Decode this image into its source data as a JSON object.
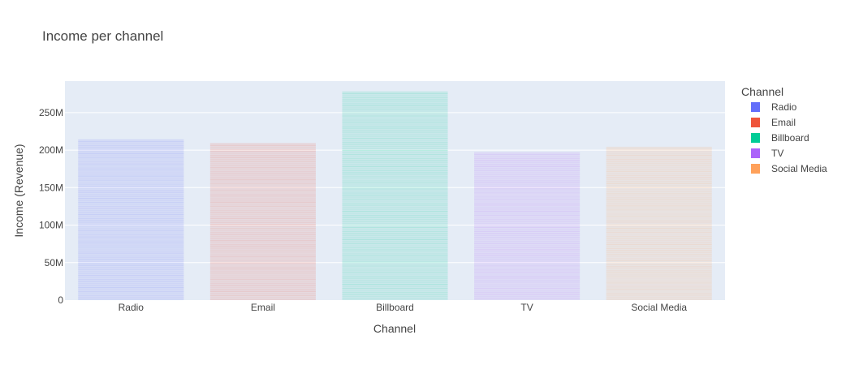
{
  "chart_data": {
    "type": "bar",
    "title": "Income per channel",
    "xlabel": "Channel",
    "ylabel": "Income (Revenue)",
    "categories": [
      "Radio",
      "Email",
      "Billboard",
      "TV",
      "Social Media"
    ],
    "values": [
      214000000,
      209000000,
      278000000,
      197000000,
      204000000
    ],
    "ylim": [
      0,
      292000000
    ],
    "yticks": [
      0,
      50000000,
      100000000,
      150000000,
      200000000,
      250000000
    ],
    "ytick_labels": [
      "0",
      "50M",
      "100M",
      "150M",
      "200M",
      "250M"
    ],
    "grid": true,
    "legend": {
      "title": "Channel",
      "placement": "right",
      "entries": [
        "Radio",
        "Email",
        "Billboard",
        "TV",
        "Social Media"
      ]
    },
    "colors": {
      "Radio": "#636efa",
      "Email": "#ef553b",
      "Billboard": "#00cc96",
      "TV": "#ab63fa",
      "Social Media": "#ffa15a"
    },
    "plot_background": "#e5ecf6"
  }
}
